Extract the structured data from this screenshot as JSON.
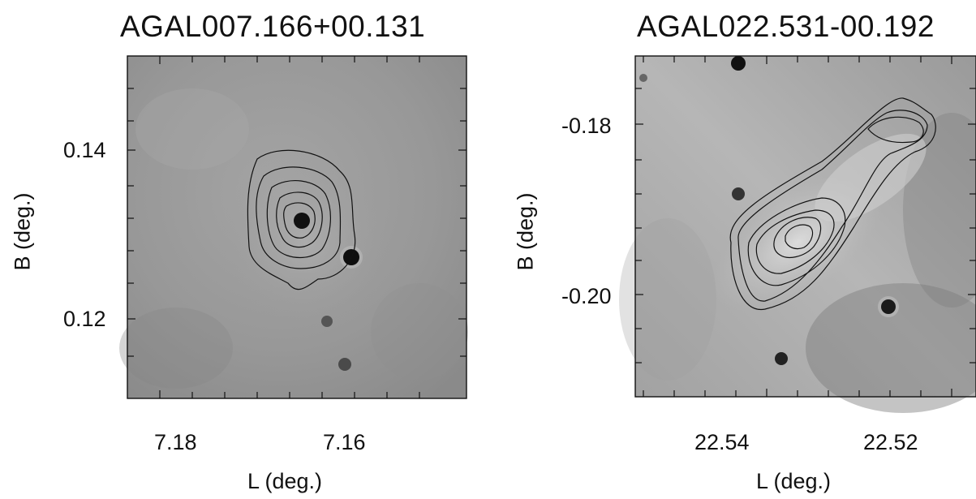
{
  "panels": [
    {
      "title": "AGAL007.166+00.131",
      "xlabel": "L (deg.)",
      "ylabel": "B (deg.)",
      "x_ticks": [
        "7.18",
        "7.16"
      ],
      "y_ticks": [
        "0.14",
        "0.12"
      ]
    },
    {
      "title": "AGAL022.531-00.192",
      "xlabel": "L (deg.)",
      "ylabel": "B (deg.)",
      "x_ticks": [
        "22.54",
        "22.52"
      ],
      "y_ticks": [
        "-0.18",
        "-0.20"
      ]
    }
  ],
  "colors": {
    "background_gray": "#9a9a9a",
    "contour": "#111111",
    "axis": "#111111"
  }
}
